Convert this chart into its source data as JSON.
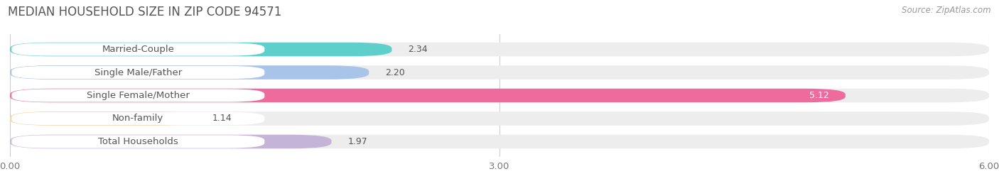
{
  "title": "MEDIAN HOUSEHOLD SIZE IN ZIP CODE 94571",
  "source": "Source: ZipAtlas.com",
  "categories": [
    "Married-Couple",
    "Single Male/Father",
    "Single Female/Mother",
    "Non-family",
    "Total Households"
  ],
  "values": [
    2.34,
    2.2,
    5.12,
    1.14,
    1.97
  ],
  "bar_colors": [
    "#5ECFCA",
    "#A8C4E8",
    "#EE6B9E",
    "#F5D5A0",
    "#C4B4D8"
  ],
  "background_color": "#ffffff",
  "bar_bg_color": "#ededee",
  "xlim": [
    0,
    6.0
  ],
  "xticks": [
    0.0,
    3.0,
    6.0
  ],
  "xtick_labels": [
    "0.00",
    "3.00",
    "6.00"
  ],
  "title_fontsize": 12,
  "label_fontsize": 9.5,
  "value_fontsize": 9,
  "source_fontsize": 8.5
}
